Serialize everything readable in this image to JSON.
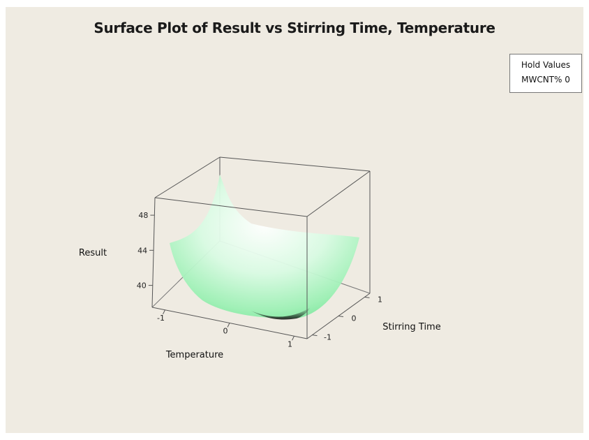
{
  "chart_data": {
    "type": "surface",
    "title": "Surface Plot of Result vs Stirring Time, Temperature",
    "x_label": "Temperature",
    "y_label": "Stirring Time",
    "z_label": "Result",
    "x_ticks": [
      "-1",
      "0",
      "1"
    ],
    "y_ticks": [
      "-1",
      "0",
      "1"
    ],
    "z_ticks": [
      "40",
      "44",
      "48"
    ],
    "x_range": [
      -1.2,
      1.2
    ],
    "y_range": [
      -1.2,
      1.2
    ],
    "z_range": [
      37.5,
      50
    ],
    "surface_color": "#7fe8a0",
    "hold_values": {
      "header": "Hold Values",
      "text": "MWCNT%  0"
    }
  }
}
